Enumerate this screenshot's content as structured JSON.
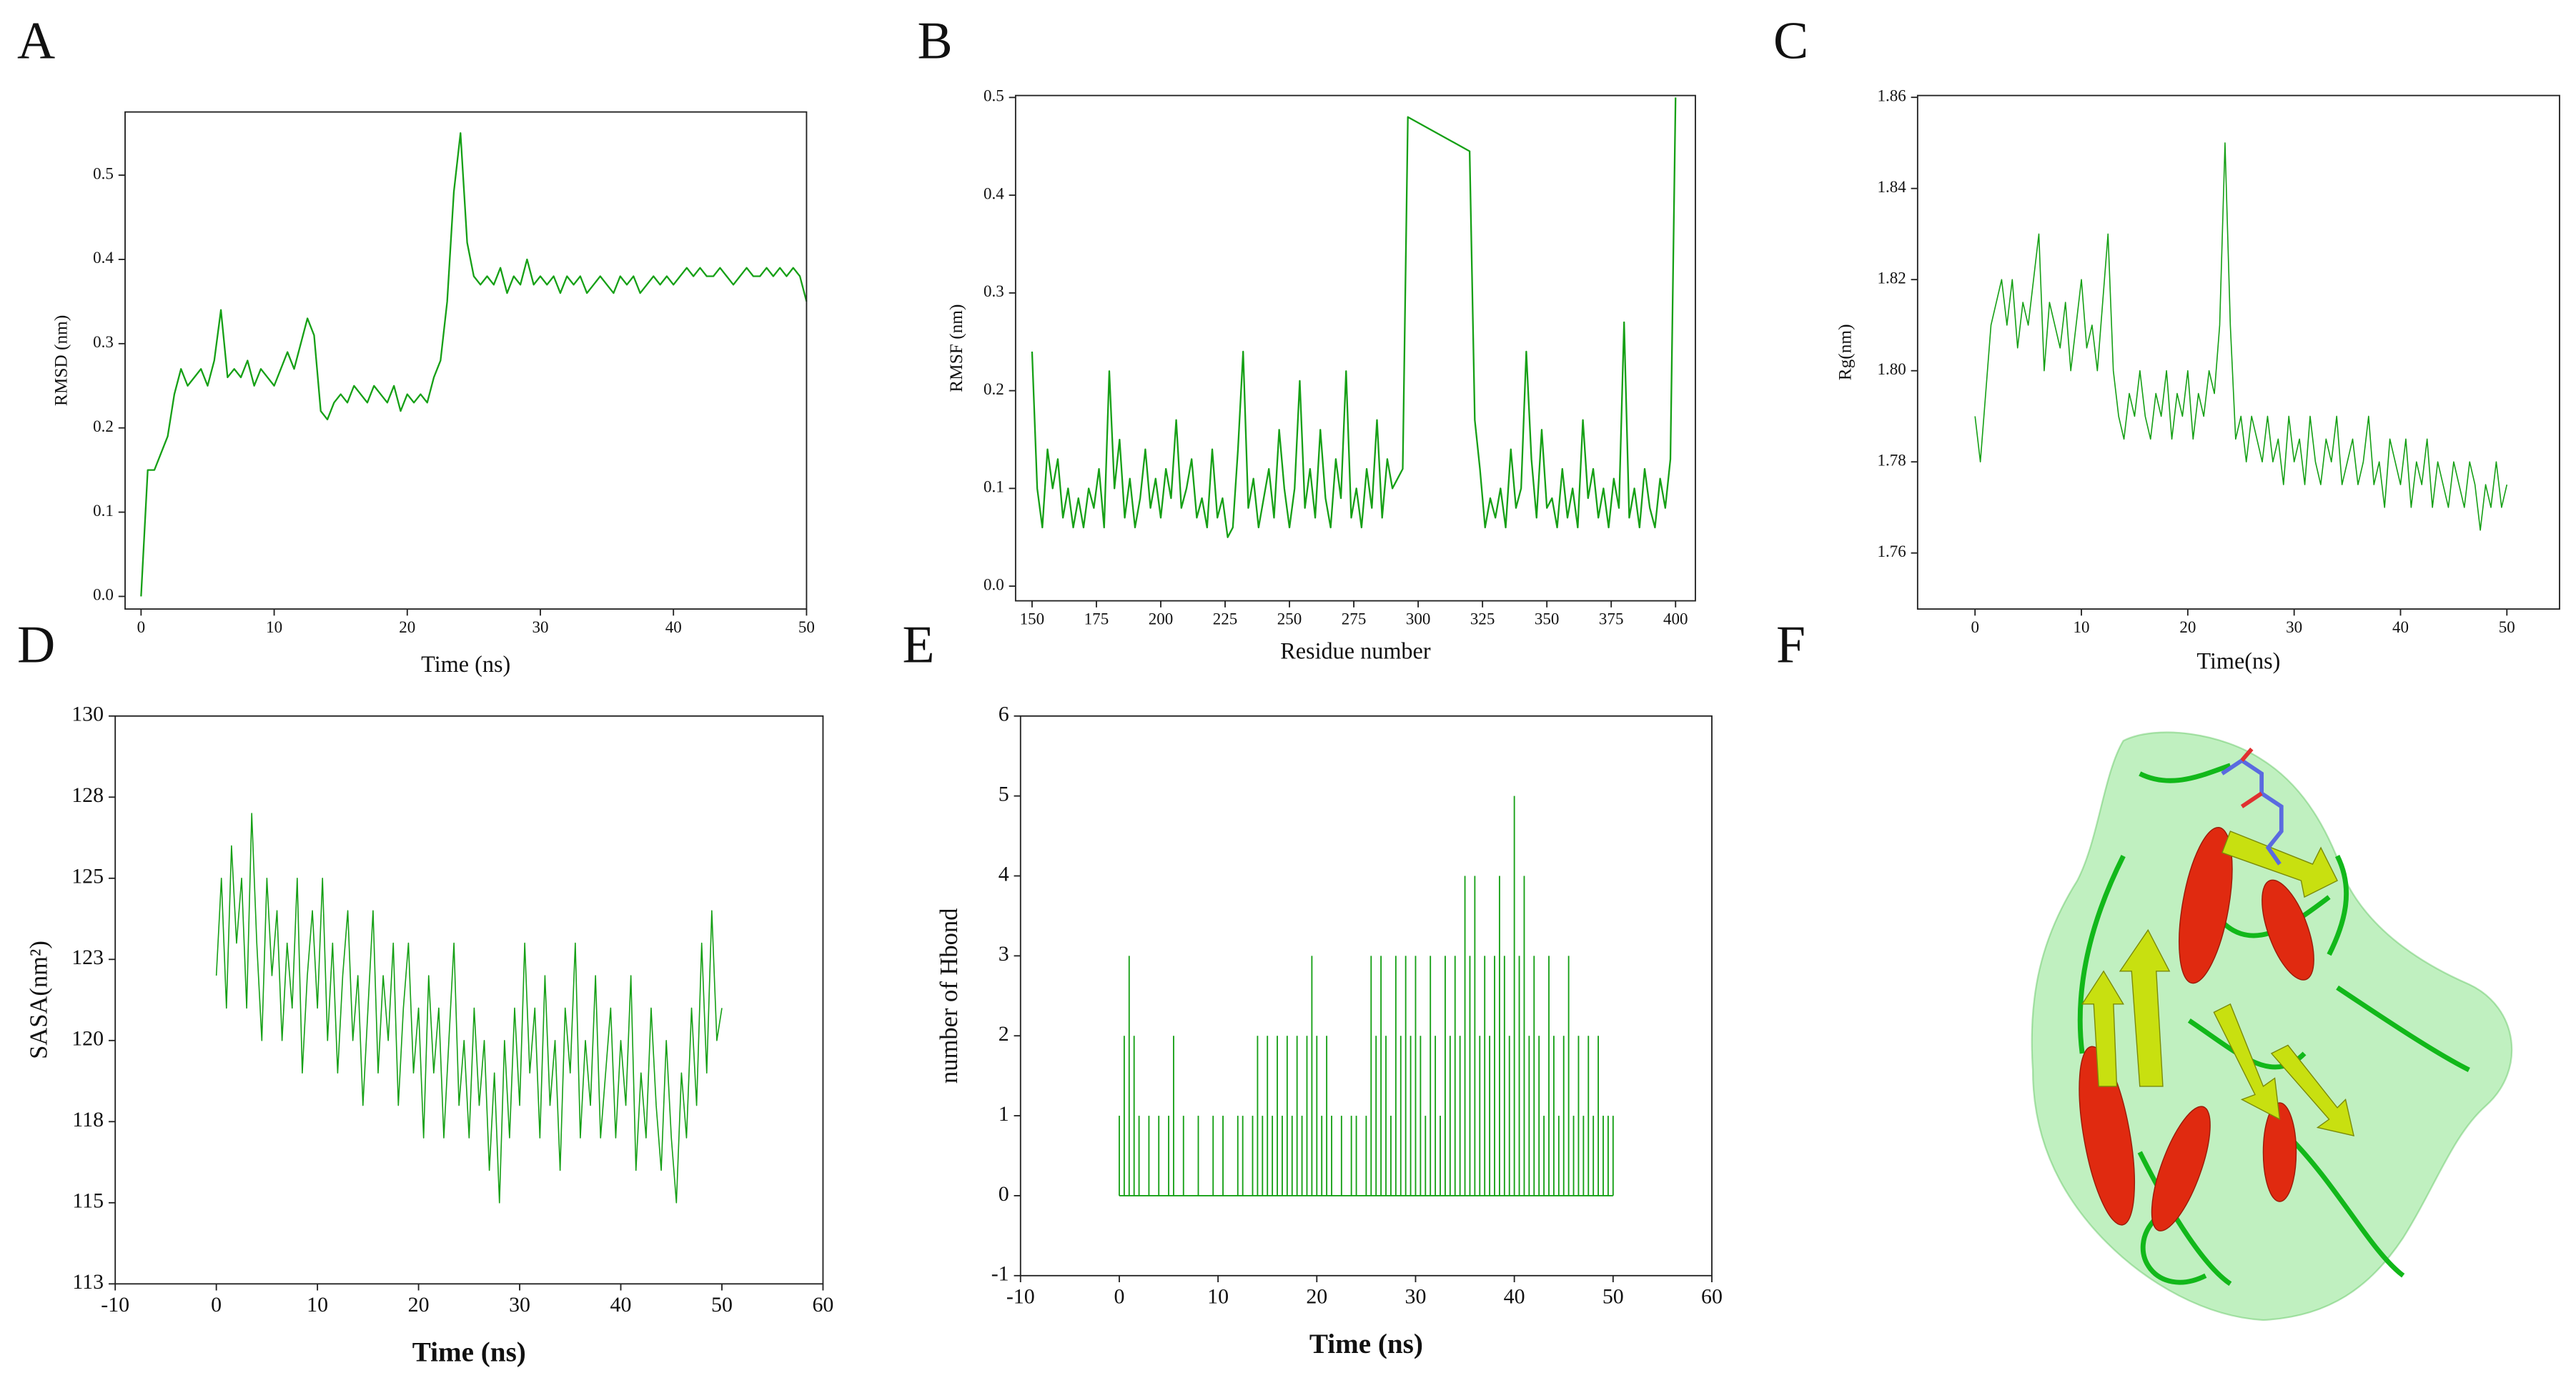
{
  "chart_data": [
    {
      "panel": "A",
      "type": "line",
      "xlabel": "Time (ns)",
      "ylabel": "RMSD (nm)",
      "color": "#16a016",
      "xlim": [
        -1.2,
        50
      ],
      "ylim": [
        -0.015,
        0.575
      ],
      "xticks": [
        0,
        10,
        20,
        30,
        40,
        50
      ],
      "yticks": [
        {
          "value": 0,
          "label": "0.0"
        },
        0.1,
        0.2,
        0.3,
        0.4,
        0.5
      ],
      "x": [
        0,
        0.5,
        1,
        1.5,
        2,
        2.5,
        3,
        3.5,
        4,
        4.5,
        5,
        5.5,
        6,
        6.5,
        7,
        7.5,
        8,
        8.5,
        9,
        9.5,
        10,
        10.5,
        11,
        11.5,
        12,
        12.5,
        13,
        13.5,
        14,
        14.5,
        15,
        15.5,
        16,
        16.5,
        17,
        17.5,
        18,
        18.5,
        19,
        19.5,
        20,
        20.5,
        21,
        21.5,
        22,
        22.5,
        23,
        23.5,
        24,
        24.5,
        25,
        25.5,
        26,
        26.5,
        27,
        27.5,
        28,
        28.5,
        29,
        29.5,
        30,
        30.5,
        31,
        31.5,
        32,
        32.5,
        33,
        33.5,
        34,
        34.5,
        35,
        35.5,
        36,
        36.5,
        37,
        37.5,
        38,
        38.5,
        39,
        39.5,
        40,
        40.5,
        41,
        41.5,
        42,
        42.5,
        43,
        43.5,
        44,
        44.5,
        45,
        45.5,
        46,
        46.5,
        47,
        47.5,
        48,
        48.5,
        49,
        49.5,
        50
      ],
      "values": [
        0,
        0.15,
        0.15,
        0.17,
        0.19,
        0.24,
        0.27,
        0.25,
        0.26,
        0.27,
        0.25,
        0.28,
        0.34,
        0.26,
        0.27,
        0.26,
        0.28,
        0.25,
        0.27,
        0.26,
        0.25,
        0.27,
        0.29,
        0.27,
        0.3,
        0.33,
        0.31,
        0.22,
        0.21,
        0.23,
        0.24,
        0.23,
        0.25,
        0.24,
        0.23,
        0.25,
        0.24,
        0.23,
        0.25,
        0.22,
        0.24,
        0.23,
        0.24,
        0.23,
        0.26,
        0.28,
        0.35,
        0.48,
        0.55,
        0.42,
        0.38,
        0.37,
        0.38,
        0.37,
        0.39,
        0.36,
        0.38,
        0.37,
        0.4,
        0.37,
        0.38,
        0.37,
        0.38,
        0.36,
        0.38,
        0.37,
        0.38,
        0.36,
        0.37,
        0.38,
        0.37,
        0.36,
        0.38,
        0.37,
        0.38,
        0.36,
        0.37,
        0.38,
        0.37,
        0.38,
        0.37,
        0.38,
        0.39,
        0.38,
        0.39,
        0.38,
        0.38,
        0.39,
        0.38,
        0.37,
        0.38,
        0.39,
        0.38,
        0.38,
        0.39,
        0.38,
        0.39,
        0.38,
        0.39,
        0.38,
        0.35
      ]
    },
    {
      "panel": "B",
      "type": "line",
      "xlabel": "Residue number",
      "ylabel": "RMSF (nm)",
      "color": "#16a016",
      "xlim": [
        143.6,
        407.7
      ],
      "ylim": [
        -0.015,
        0.502
      ],
      "xticks": [
        150,
        175,
        200,
        225,
        250,
        275,
        300,
        325,
        350,
        375,
        400
      ],
      "yticks": [
        {
          "value": 0,
          "label": "0.0"
        },
        0.1,
        0.2,
        0.3,
        0.4,
        0.5
      ],
      "x": [
        150,
        152,
        154,
        156,
        158,
        160,
        162,
        164,
        166,
        168,
        170,
        172,
        174,
        176,
        178,
        180,
        182,
        184,
        186,
        188,
        190,
        192,
        194,
        196,
        198,
        200,
        202,
        204,
        206,
        208,
        210,
        212,
        214,
        216,
        218,
        220,
        222,
        224,
        226,
        228,
        230,
        232,
        234,
        236,
        238,
        240,
        242,
        244,
        246,
        248,
        250,
        252,
        254,
        256,
        258,
        260,
        262,
        264,
        266,
        268,
        270,
        272,
        274,
        276,
        278,
        280,
        282,
        284,
        286,
        288,
        290,
        292,
        294,
        296,
        320,
        322,
        324,
        326,
        328,
        330,
        332,
        334,
        336,
        338,
        340,
        342,
        344,
        346,
        348,
        350,
        352,
        354,
        356,
        358,
        360,
        362,
        364,
        366,
        368,
        370,
        372,
        374,
        376,
        378,
        380,
        382,
        384,
        386,
        388,
        390,
        392,
        394,
        396,
        398,
        400
      ],
      "values": [
        0.24,
        0.1,
        0.06,
        0.14,
        0.1,
        0.13,
        0.07,
        0.1,
        0.06,
        0.09,
        0.06,
        0.1,
        0.08,
        0.12,
        0.06,
        0.22,
        0.1,
        0.15,
        0.07,
        0.11,
        0.06,
        0.09,
        0.14,
        0.08,
        0.11,
        0.07,
        0.12,
        0.09,
        0.17,
        0.08,
        0.1,
        0.13,
        0.07,
        0.09,
        0.06,
        0.14,
        0.07,
        0.09,
        0.05,
        0.06,
        0.14,
        0.24,
        0.08,
        0.11,
        0.06,
        0.09,
        0.12,
        0.07,
        0.16,
        0.1,
        0.06,
        0.1,
        0.21,
        0.08,
        0.12,
        0.07,
        0.16,
        0.09,
        0.06,
        0.13,
        0.09,
        0.22,
        0.07,
        0.1,
        0.06,
        0.12,
        0.08,
        0.17,
        0.07,
        0.13,
        0.1,
        0.11,
        0.12,
        0.48,
        0.445,
        0.17,
        0.12,
        0.06,
        0.09,
        0.07,
        0.1,
        0.06,
        0.14,
        0.08,
        0.1,
        0.24,
        0.13,
        0.07,
        0.16,
        0.08,
        0.09,
        0.06,
        0.12,
        0.07,
        0.1,
        0.06,
        0.17,
        0.09,
        0.12,
        0.07,
        0.1,
        0.06,
        0.11,
        0.08,
        0.27,
        0.07,
        0.1,
        0.06,
        0.12,
        0.08,
        0.06,
        0.11,
        0.08,
        0.13,
        0.5
      ]
    },
    {
      "panel": "C",
      "type": "line",
      "xlabel": "Time(ns)",
      "ylabel": "Rg(nm)",
      "color": "#16a016",
      "xlim": [
        -5.4,
        54.95
      ],
      "ylim": [
        1.7477,
        1.8604
      ],
      "xticks": [
        0,
        10,
        20,
        30,
        40,
        50
      ],
      "yticks": [
        1.76,
        1.78,
        {
          "value": 1.8,
          "label": "1.80"
        },
        1.82,
        1.84,
        1.86
      ],
      "x": [
        0,
        0.5,
        1,
        1.5,
        2,
        2.5,
        3,
        3.5,
        4,
        4.5,
        5,
        5.5,
        6,
        6.5,
        7,
        7.5,
        8,
        8.5,
        9,
        9.5,
        10,
        10.5,
        11,
        11.5,
        12,
        12.5,
        13,
        13.5,
        14,
        14.5,
        15,
        15.5,
        16,
        16.5,
        17,
        17.5,
        18,
        18.5,
        19,
        19.5,
        20,
        20.5,
        21,
        21.5,
        22,
        22.5,
        23,
        23.5,
        24,
        24.5,
        25,
        25.5,
        26,
        26.5,
        27,
        27.5,
        28,
        28.5,
        29,
        29.5,
        30,
        30.5,
        31,
        31.5,
        32,
        32.5,
        33,
        33.5,
        34,
        34.5,
        35,
        35.5,
        36,
        36.5,
        37,
        37.5,
        38,
        38.5,
        39,
        39.5,
        40,
        40.5,
        41,
        41.5,
        42,
        42.5,
        43,
        43.5,
        44,
        44.5,
        45,
        45.5,
        46,
        46.5,
        47,
        47.5,
        48,
        48.5,
        49,
        49.5,
        50
      ],
      "values": [
        1.79,
        1.78,
        1.795,
        1.81,
        1.815,
        1.82,
        1.81,
        1.82,
        1.805,
        1.815,
        1.81,
        1.82,
        1.83,
        1.8,
        1.815,
        1.81,
        1.805,
        1.815,
        1.8,
        1.81,
        1.82,
        1.805,
        1.81,
        1.8,
        1.815,
        1.83,
        1.8,
        1.79,
        1.785,
        1.795,
        1.79,
        1.8,
        1.79,
        1.785,
        1.795,
        1.79,
        1.8,
        1.785,
        1.795,
        1.79,
        1.8,
        1.785,
        1.795,
        1.79,
        1.8,
        1.795,
        1.81,
        1.85,
        1.81,
        1.785,
        1.79,
        1.78,
        1.79,
        1.785,
        1.78,
        1.79,
        1.78,
        1.785,
        1.775,
        1.79,
        1.78,
        1.785,
        1.775,
        1.79,
        1.78,
        1.775,
        1.785,
        1.78,
        1.79,
        1.775,
        1.78,
        1.785,
        1.775,
        1.78,
        1.79,
        1.775,
        1.78,
        1.77,
        1.785,
        1.78,
        1.775,
        1.785,
        1.77,
        1.78,
        1.775,
        1.785,
        1.77,
        1.78,
        1.775,
        1.77,
        1.78,
        1.775,
        1.77,
        1.78,
        1.775,
        1.765,
        1.775,
        1.77,
        1.78,
        1.77,
        1.775
      ]
    },
    {
      "panel": "D",
      "type": "line",
      "xlabel": "Time (ns)",
      "ylabel": "SASA(nm²)",
      "color": "#16a016",
      "xlim": [
        -10,
        60
      ],
      "ylim": [
        112.5,
        130
      ],
      "xticks": [
        -10,
        0,
        10,
        20,
        30,
        40,
        50,
        60
      ],
      "yticks": [
        {
          "value": 112.5,
          "label": "113"
        },
        115,
        {
          "value": 117.5,
          "label": "118"
        },
        120,
        {
          "value": 122.5,
          "label": "123"
        },
        125,
        {
          "value": 127.5,
          "label": "128"
        },
        130
      ],
      "x": [
        0,
        0.5,
        1,
        1.5,
        2,
        2.5,
        3,
        3.5,
        4,
        4.5,
        5,
        5.5,
        6,
        6.5,
        7,
        7.5,
        8,
        8.5,
        9,
        9.5,
        10,
        10.5,
        11,
        11.5,
        12,
        12.5,
        13,
        13.5,
        14,
        14.5,
        15,
        15.5,
        16,
        16.5,
        17,
        17.5,
        18,
        18.5,
        19,
        19.5,
        20,
        20.5,
        21,
        21.5,
        22,
        22.5,
        23,
        23.5,
        24,
        24.5,
        25,
        25.5,
        26,
        26.5,
        27,
        27.5,
        28,
        28.5,
        29,
        29.5,
        30,
        30.5,
        31,
        31.5,
        32,
        32.5,
        33,
        33.5,
        34,
        34.5,
        35,
        35.5,
        36,
        36.5,
        37,
        37.5,
        38,
        38.5,
        39,
        39.5,
        40,
        40.5,
        41,
        41.5,
        42,
        42.5,
        43,
        43.5,
        44,
        44.5,
        45,
        45.5,
        46,
        46.5,
        47,
        47.5,
        48,
        48.5,
        49,
        49.5,
        50
      ],
      "values": [
        122,
        125,
        121,
        126,
        123,
        125,
        121,
        127,
        123,
        120,
        125,
        122,
        124,
        120,
        123,
        121,
        125,
        119,
        122,
        124,
        121,
        125,
        120,
        123,
        119,
        122,
        124,
        120,
        122,
        118,
        121,
        124,
        119,
        122,
        120,
        123,
        118,
        121,
        123,
        119,
        121,
        117,
        122,
        119,
        121,
        117,
        120,
        123,
        118,
        120,
        117,
        121,
        118,
        120,
        116,
        119,
        115,
        120,
        117,
        121,
        118,
        123,
        119,
        121,
        117,
        122,
        118,
        120,
        116,
        121,
        119,
        123,
        117,
        120,
        118,
        122,
        117,
        119,
        121,
        117,
        120,
        118,
        122,
        116,
        119,
        117,
        121,
        118,
        116,
        120,
        117,
        115,
        119,
        117,
        121,
        118,
        123,
        119,
        124,
        120,
        121
      ]
    },
    {
      "panel": "E",
      "type": "bar",
      "xlabel": "Time (ns)",
      "ylabel": "number of Hbond",
      "color": "#16a016",
      "xlim": [
        -10,
        60
      ],
      "ylim": [
        -1,
        6
      ],
      "xticks": [
        -10,
        0,
        10,
        20,
        30,
        40,
        50,
        60
      ],
      "yticks": [
        -1,
        0,
        1,
        2,
        3,
        4,
        5,
        6
      ],
      "x": [
        0,
        0.5,
        1,
        1.5,
        2,
        2.5,
        3,
        3.5,
        4,
        4.5,
        5,
        5.5,
        6,
        6.5,
        7,
        7.5,
        8,
        8.5,
        9,
        9.5,
        10,
        10.5,
        11,
        11.5,
        12,
        12.5,
        13,
        13.5,
        14,
        14.5,
        15,
        15.5,
        16,
        16.5,
        17,
        17.5,
        18,
        18.5,
        19,
        19.5,
        20,
        20.5,
        21,
        21.5,
        22,
        22.5,
        23,
        23.5,
        24,
        24.5,
        25,
        25.5,
        26,
        26.5,
        27,
        27.5,
        28,
        28.5,
        29,
        29.5,
        30,
        30.5,
        31,
        31.5,
        32,
        32.5,
        33,
        33.5,
        34,
        34.5,
        35,
        35.5,
        36,
        36.5,
        37,
        37.5,
        38,
        38.5,
        39,
        39.5,
        40,
        40.5,
        41,
        41.5,
        42,
        42.5,
        43,
        43.5,
        44,
        44.5,
        45,
        45.5,
        46,
        46.5,
        47,
        47.5,
        48,
        48.5,
        49,
        49.5,
        50
      ],
      "values": [
        1,
        2,
        3,
        2,
        1,
        0,
        1,
        0,
        1,
        0,
        1,
        2,
        0,
        1,
        0,
        0,
        1,
        0,
        0,
        1,
        0,
        1,
        0,
        0,
        1,
        1,
        0,
        1,
        2,
        1,
        2,
        1,
        2,
        1,
        2,
        1,
        2,
        1,
        2,
        3,
        2,
        1,
        2,
        1,
        0,
        1,
        0,
        1,
        1,
        0,
        1,
        3,
        2,
        3,
        2,
        1,
        3,
        2,
        3,
        2,
        3,
        2,
        1,
        3,
        2,
        1,
        3,
        2,
        3,
        2,
        4,
        3,
        4,
        2,
        3,
        2,
        3,
        4,
        3,
        2,
        5,
        3,
        4,
        2,
        3,
        2,
        1,
        3,
        2,
        1,
        2,
        3,
        1,
        2,
        1,
        2,
        1,
        2,
        1,
        1,
        1
      ]
    }
  ],
  "structure_panel": {
    "panel": "F"
  }
}
